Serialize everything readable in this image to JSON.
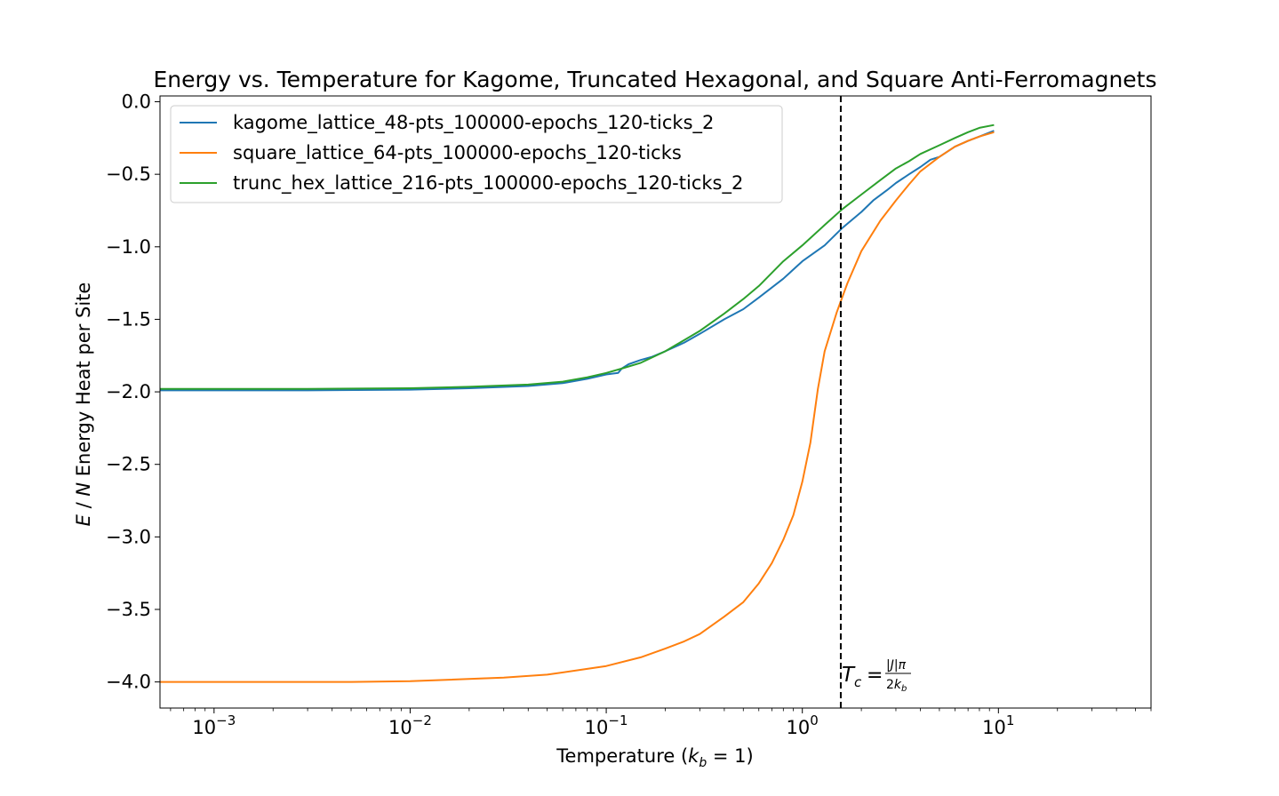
{
  "chart_data": {
    "type": "line",
    "title": "Energy vs. Temperature for Kagome, Truncated Hexagonal, and Square Anti-Ferromagnets",
    "xlabel": "Temperature (k_b = 1)",
    "ylabel": "E / N Energy Heat per Site",
    "xscale": "log",
    "xlim": [
      0.00053,
      60
    ],
    "ylim": [
      -4.18,
      0.04
    ],
    "x_ticks": [
      {
        "value": 0.001,
        "label": "10^-3"
      },
      {
        "value": 0.01,
        "label": "10^-2"
      },
      {
        "value": 0.1,
        "label": "10^-1"
      },
      {
        "value": 1,
        "label": "10^0"
      },
      {
        "value": 10,
        "label": "10^1"
      }
    ],
    "y_ticks": [
      {
        "value": 0.0,
        "label": "0.0"
      },
      {
        "value": -0.5,
        "label": "−0.5"
      },
      {
        "value": -1.0,
        "label": "−1.0"
      },
      {
        "value": -1.5,
        "label": "−1.5"
      },
      {
        "value": -2.0,
        "label": "−2.0"
      },
      {
        "value": -2.5,
        "label": "−2.5"
      },
      {
        "value": -3.0,
        "label": "−3.0"
      },
      {
        "value": -3.5,
        "label": "−3.5"
      },
      {
        "value": -4.0,
        "label": "−4.0"
      }
    ],
    "grid": false,
    "legend": "upper-left",
    "series": [
      {
        "name": "kagome_lattice_48-pts_100000-epochs_120-ticks_2",
        "color": "#1f77b4",
        "x": [
          0.00053,
          0.001,
          0.003,
          0.01,
          0.02,
          0.04,
          0.06,
          0.08,
          0.1,
          0.115,
          0.12,
          0.13,
          0.15,
          0.17,
          0.2,
          0.25,
          0.3,
          0.4,
          0.5,
          0.6,
          0.8,
          1.0,
          1.3,
          1.6,
          2.0,
          2.3,
          2.7,
          3.0,
          3.5,
          4.0,
          4.5,
          5.0,
          6.0,
          7.0,
          8.0,
          9.5
        ],
        "y": [
          -1.99,
          -1.99,
          -1.99,
          -1.985,
          -1.975,
          -1.96,
          -1.94,
          -1.91,
          -1.88,
          -1.87,
          -1.84,
          -1.81,
          -1.78,
          -1.76,
          -1.72,
          -1.66,
          -1.6,
          -1.5,
          -1.43,
          -1.35,
          -1.22,
          -1.1,
          -0.99,
          -0.87,
          -0.76,
          -0.68,
          -0.61,
          -0.56,
          -0.5,
          -0.45,
          -0.4,
          -0.38,
          -0.31,
          -0.27,
          -0.24,
          -0.2
        ]
      },
      {
        "name": "square_lattice_64-pts_100000-epochs_120-ticks",
        "color": "#ff7f0e",
        "x": [
          0.00053,
          0.001,
          0.005,
          0.01,
          0.03,
          0.05,
          0.08,
          0.1,
          0.15,
          0.2,
          0.25,
          0.3,
          0.4,
          0.5,
          0.6,
          0.7,
          0.8,
          0.9,
          1.0,
          1.1,
          1.2,
          1.3,
          1.5,
          1.7,
          2.0,
          2.5,
          3.0,
          3.5,
          4.0,
          5.0,
          6.0,
          7.0,
          8.0,
          9.5
        ],
        "y": [
          -4.0,
          -4.0,
          -4.0,
          -3.995,
          -3.97,
          -3.95,
          -3.91,
          -3.89,
          -3.83,
          -3.77,
          -3.72,
          -3.67,
          -3.55,
          -3.45,
          -3.32,
          -3.18,
          -3.02,
          -2.85,
          -2.62,
          -2.35,
          -1.98,
          -1.72,
          -1.45,
          -1.25,
          -1.03,
          -0.82,
          -0.68,
          -0.57,
          -0.48,
          -0.38,
          -0.31,
          -0.27,
          -0.24,
          -0.21
        ]
      },
      {
        "name": "trunc_hex_lattice_216-pts_100000-epochs_120-ticks_2",
        "color": "#2ca02c",
        "x": [
          0.00053,
          0.001,
          0.003,
          0.01,
          0.02,
          0.04,
          0.06,
          0.08,
          0.1,
          0.12,
          0.15,
          0.2,
          0.3,
          0.4,
          0.5,
          0.6,
          0.8,
          1.0,
          1.3,
          1.6,
          2.0,
          2.5,
          3.0,
          3.5,
          4.0,
          5.0,
          6.0,
          7.0,
          8.0,
          9.5
        ],
        "y": [
          -1.98,
          -1.98,
          -1.98,
          -1.975,
          -1.965,
          -1.95,
          -1.93,
          -1.9,
          -1.87,
          -1.84,
          -1.8,
          -1.72,
          -1.58,
          -1.46,
          -1.36,
          -1.27,
          -1.1,
          -0.99,
          -0.85,
          -0.74,
          -0.64,
          -0.54,
          -0.46,
          -0.41,
          -0.36,
          -0.3,
          -0.25,
          -0.21,
          -0.18,
          -0.16
        ]
      }
    ],
    "vline": {
      "x": 1.5708,
      "style": "dashed",
      "color": "#000000"
    },
    "annotation": {
      "text": "T_c = |J|π / 2k_b",
      "x": 1.5708,
      "y": -3.96
    }
  }
}
